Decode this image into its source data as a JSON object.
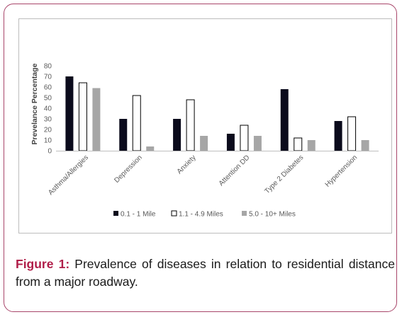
{
  "chart_data": {
    "type": "bar",
    "title": "",
    "xlabel": "",
    "ylabel": "Prevelance Percentage",
    "ylim": [
      0,
      80
    ],
    "yticks": [
      "0",
      "10",
      "20",
      "30",
      "40",
      "50",
      "60",
      "70",
      "80"
    ],
    "grid": false,
    "legend_position": "bottom",
    "categories": [
      "Asthma/Allergies",
      "Depression",
      "Anxiety",
      "Attention DD",
      "Type 2 Diabetes",
      "Hypertension"
    ],
    "series": [
      {
        "name": "0.1 - 1 Mile",
        "values": [
          70,
          30,
          30,
          16,
          58,
          28
        ],
        "color": "#0b0b1c"
      },
      {
        "name": "1.1 - 4.9 Miles",
        "values": [
          64,
          52,
          48,
          24,
          12,
          32
        ],
        "color": "#ffffff"
      },
      {
        "name": "5.0 - 10+ Miles",
        "values": [
          59,
          4,
          14,
          14,
          10,
          10
        ],
        "color": "#a6a6a6"
      }
    ]
  },
  "caption": {
    "label": "Figure 1:",
    "text": " Prevalence of diseases in relation to residential distance from a major roadway."
  }
}
